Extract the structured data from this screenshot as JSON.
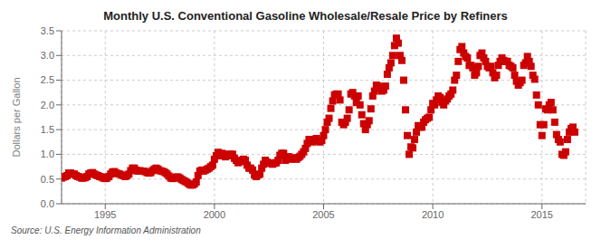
{
  "chart_data": {
    "type": "scatter",
    "title": "Monthly U.S. Conventional Gasoline Wholesale/Resale Price by Refiners",
    "ylabel": "Dollars per Gallon",
    "annotations": [
      "Source: U.S. Energy Information Administration"
    ],
    "color": "#cc0000",
    "marker": "square",
    "grid": true,
    "xlim": [
      1993.0,
      2017.0
    ],
    "xticks": [
      1995,
      2000,
      2005,
      2010,
      2015
    ],
    "ylim": [
      0.0,
      3.5
    ],
    "yticks": [
      {
        "value": 0.0,
        "label": "0.0"
      },
      0.5,
      {
        "value": 1.0,
        "label": "1.0"
      },
      1.5,
      {
        "value": 2.0,
        "label": "2.0"
      },
      2.5,
      {
        "value": 3.0,
        "label": "3.0"
      },
      3.5
    ],
    "x": [
      1993.0,
      1993.083,
      1993.167,
      1993.25,
      1993.333,
      1993.417,
      1993.5,
      1993.583,
      1993.667,
      1993.75,
      1993.833,
      1993.917,
      1994.0,
      1994.083,
      1994.167,
      1994.25,
      1994.333,
      1994.417,
      1994.5,
      1994.583,
      1994.667,
      1994.75,
      1994.833,
      1994.917,
      1995.0,
      1995.083,
      1995.167,
      1995.25,
      1995.333,
      1995.417,
      1995.5,
      1995.583,
      1995.667,
      1995.75,
      1995.833,
      1995.917,
      1996.0,
      1996.083,
      1996.167,
      1996.25,
      1996.333,
      1996.417,
      1996.5,
      1996.583,
      1996.667,
      1996.75,
      1996.833,
      1996.917,
      1997.0,
      1997.083,
      1997.167,
      1997.25,
      1997.333,
      1997.417,
      1997.5,
      1997.583,
      1997.667,
      1997.75,
      1997.833,
      1997.917,
      1998.0,
      1998.083,
      1998.167,
      1998.25,
      1998.333,
      1998.417,
      1998.5,
      1998.583,
      1998.667,
      1998.75,
      1998.833,
      1998.917,
      1999.0,
      1999.083,
      1999.167,
      1999.25,
      1999.333,
      1999.417,
      1999.5,
      1999.583,
      1999.667,
      1999.75,
      1999.833,
      1999.917,
      2000.0,
      2000.083,
      2000.167,
      2000.25,
      2000.333,
      2000.417,
      2000.5,
      2000.583,
      2000.667,
      2000.75,
      2000.833,
      2000.917,
      2001.0,
      2001.083,
      2001.167,
      2001.25,
      2001.333,
      2001.417,
      2001.5,
      2001.583,
      2001.667,
      2001.75,
      2001.833,
      2001.917,
      2002.0,
      2002.083,
      2002.167,
      2002.25,
      2002.333,
      2002.417,
      2002.5,
      2002.583,
      2002.667,
      2002.75,
      2002.833,
      2002.917,
      2003.0,
      2003.083,
      2003.167,
      2003.25,
      2003.333,
      2003.417,
      2003.5,
      2003.583,
      2003.667,
      2003.75,
      2003.833,
      2003.917,
      2004.0,
      2004.083,
      2004.167,
      2004.25,
      2004.333,
      2004.417,
      2004.5,
      2004.583,
      2004.667,
      2004.75,
      2004.833,
      2004.917,
      2005.0,
      2005.083,
      2005.167,
      2005.25,
      2005.333,
      2005.417,
      2005.5,
      2005.583,
      2005.667,
      2005.75,
      2005.833,
      2005.917,
      2006.0,
      2006.083,
      2006.167,
      2006.25,
      2006.333,
      2006.417,
      2006.5,
      2006.583,
      2006.667,
      2006.75,
      2006.833,
      2006.917,
      2007.0,
      2007.083,
      2007.167,
      2007.25,
      2007.333,
      2007.417,
      2007.5,
      2007.583,
      2007.667,
      2007.75,
      2007.833,
      2007.917,
      2008.0,
      2008.083,
      2008.167,
      2008.25,
      2008.333,
      2008.417,
      2008.5,
      2008.583,
      2008.667,
      2008.75,
      2008.833,
      2008.917,
      2009.0,
      2009.083,
      2009.167,
      2009.25,
      2009.333,
      2009.417,
      2009.5,
      2009.583,
      2009.667,
      2009.75,
      2009.833,
      2009.917,
      2010.0,
      2010.083,
      2010.167,
      2010.25,
      2010.333,
      2010.417,
      2010.5,
      2010.583,
      2010.667,
      2010.75,
      2010.833,
      2010.917,
      2011.0,
      2011.083,
      2011.167,
      2011.25,
      2011.333,
      2011.417,
      2011.5,
      2011.583,
      2011.667,
      2011.75,
      2011.833,
      2011.917,
      2012.0,
      2012.083,
      2012.167,
      2012.25,
      2012.333,
      2012.417,
      2012.5,
      2012.583,
      2012.667,
      2012.75,
      2012.833,
      2012.917,
      2013.0,
      2013.083,
      2013.167,
      2013.25,
      2013.333,
      2013.417,
      2013.5,
      2013.583,
      2013.667,
      2013.75,
      2013.833,
      2013.917,
      2014.0,
      2014.083,
      2014.167,
      2014.25,
      2014.333,
      2014.417,
      2014.5,
      2014.583,
      2014.667,
      2014.75,
      2014.833,
      2014.917,
      2015.0,
      2015.083,
      2015.167,
      2015.25,
      2015.333,
      2015.417,
      2015.5,
      2015.583,
      2015.667,
      2015.75,
      2015.833,
      2015.917,
      2016.0,
      2016.083,
      2016.167,
      2016.25,
      2016.333,
      2016.417,
      2016.5
    ],
    "values": [
      0.52,
      0.54,
      0.55,
      0.57,
      0.62,
      0.62,
      0.6,
      0.6,
      0.57,
      0.55,
      0.54,
      0.52,
      0.52,
      0.53,
      0.55,
      0.6,
      0.62,
      0.63,
      0.6,
      0.58,
      0.57,
      0.55,
      0.54,
      0.52,
      0.51,
      0.52,
      0.55,
      0.6,
      0.64,
      0.65,
      0.62,
      0.61,
      0.6,
      0.58,
      0.57,
      0.55,
      0.57,
      0.6,
      0.67,
      0.72,
      0.72,
      0.68,
      0.66,
      0.67,
      0.66,
      0.66,
      0.65,
      0.63,
      0.62,
      0.63,
      0.67,
      0.7,
      0.72,
      0.7,
      0.67,
      0.66,
      0.65,
      0.63,
      0.6,
      0.56,
      0.52,
      0.51,
      0.52,
      0.54,
      0.54,
      0.52,
      0.49,
      0.47,
      0.45,
      0.43,
      0.4,
      0.38,
      0.38,
      0.4,
      0.44,
      0.57,
      0.66,
      0.68,
      0.66,
      0.68,
      0.7,
      0.72,
      0.75,
      0.78,
      0.9,
      0.97,
      1.04,
      0.97,
      1.02,
      1.0,
      0.95,
      0.97,
      1.0,
      1.0,
      1.0,
      0.92,
      0.88,
      0.83,
      0.85,
      0.88,
      0.9,
      0.88,
      0.78,
      0.72,
      0.72,
      0.68,
      0.58,
      0.55,
      0.58,
      0.6,
      0.72,
      0.8,
      0.88,
      0.84,
      0.82,
      0.82,
      0.8,
      0.82,
      0.83,
      0.88,
      0.98,
      1.02,
      1.02,
      0.88,
      0.95,
      0.95,
      0.9,
      0.92,
      0.93,
      0.9,
      0.93,
      0.96,
      1.0,
      1.05,
      1.12,
      1.22,
      1.3,
      1.28,
      1.25,
      1.3,
      1.32,
      1.28,
      1.25,
      1.28,
      1.38,
      1.5,
      1.65,
      1.73,
      1.93,
      2.08,
      2.2,
      2.22,
      2.22,
      2.1,
      1.65,
      1.6,
      1.65,
      1.73,
      1.9,
      2.22,
      2.25,
      2.18,
      2.05,
      2.18,
      2.0,
      1.8,
      1.62,
      1.5,
      1.6,
      1.68,
      1.92,
      2.18,
      2.28,
      2.4,
      2.38,
      2.35,
      2.28,
      2.3,
      2.38,
      2.62,
      2.75,
      2.85,
      3.0,
      3.2,
      3.35,
      3.25,
      3.0,
      2.9,
      2.5,
      1.9,
      1.38,
      1.0,
      1.15,
      1.13,
      1.3,
      1.45,
      1.58,
      1.55,
      1.55,
      1.65,
      1.7,
      1.73,
      1.75,
      1.9,
      2.03,
      2.0,
      2.1,
      2.18,
      2.15,
      2.05,
      2.0,
      2.08,
      2.12,
      2.18,
      2.22,
      2.3,
      2.5,
      2.6,
      2.88,
      3.12,
      3.18,
      3.05,
      2.98,
      2.95,
      2.8,
      2.8,
      2.75,
      2.6,
      2.65,
      2.78,
      3.0,
      3.05,
      2.95,
      2.88,
      2.78,
      2.75,
      2.78,
      2.65,
      2.55,
      2.6,
      2.8,
      2.88,
      2.95,
      2.9,
      2.88,
      2.88,
      2.8,
      2.78,
      2.75,
      2.6,
      2.48,
      2.4,
      2.45,
      2.5,
      2.8,
      2.85,
      2.98,
      2.88,
      2.78,
      2.6,
      2.52,
      2.2,
      2.0,
      1.6,
      1.38,
      1.6,
      1.92,
      1.9,
      2.0,
      2.05,
      1.9,
      1.65,
      1.4,
      1.3,
      1.25,
      1.0,
      0.98,
      1.05,
      1.3,
      1.45,
      1.52,
      1.55,
      1.45
    ]
  }
}
